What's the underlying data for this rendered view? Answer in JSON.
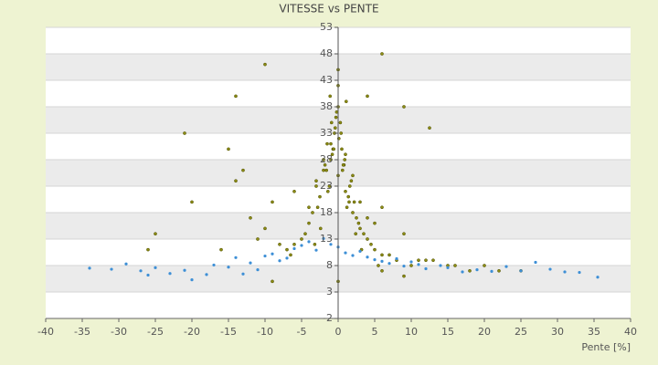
{
  "chart_data": {
    "type": "scatter",
    "title": "VITESSE vs PENTE",
    "x_label": "Pente [%]",
    "xlim": [
      -40,
      40
    ],
    "xticks": [
      -40,
      -35,
      -30,
      -25,
      -20,
      -15,
      -10,
      -5,
      0,
      5,
      10,
      15,
      20,
      25,
      30,
      35,
      40
    ],
    "ylim": [
      -2,
      53
    ],
    "yticks": [
      -2,
      3,
      8,
      13,
      18,
      23,
      28,
      33,
      38,
      43,
      48,
      53
    ],
    "grid": true,
    "series": [
      {
        "color": "#8c8c14",
        "x": [
          -1,
          -0.5,
          0,
          0.5,
          1,
          1.5,
          2,
          -2,
          -3,
          -1.5,
          0.3,
          -0.8,
          2.5,
          3,
          -2.5,
          1.2,
          -0.2,
          0.8,
          -1.2,
          3.5,
          4,
          -4,
          -3.5,
          5,
          6,
          -5,
          -6,
          2.2,
          1.8,
          -1.8,
          0.1,
          -0.4,
          0.6,
          -0.7,
          1.4,
          -1.4,
          2.8,
          -2.8,
          4.5,
          -4.5,
          7,
          8,
          -7,
          -8,
          10,
          12,
          15,
          18,
          20,
          22,
          25,
          -10,
          -12,
          -14,
          -15,
          -9,
          -11,
          -13,
          6,
          -6,
          5,
          9,
          11,
          0,
          0,
          0,
          0,
          -0.3,
          0.4,
          1,
          -1,
          2,
          -2,
          3,
          -3,
          4,
          -4,
          0.7,
          -0.6,
          1.6,
          -1.6,
          6,
          -6.5,
          5.5,
          13,
          16,
          -16,
          -20,
          -25,
          -26,
          9,
          -9,
          3.2,
          -3.2,
          0.9,
          -0.9,
          2.4,
          -2.4,
          1.1,
          -1.1,
          6,
          -10,
          -14,
          4,
          9,
          12.5,
          -21
        ],
        "values": [
          28,
          33,
          25,
          30,
          22,
          20,
          18,
          26,
          24,
          31,
          35,
          29,
          17,
          15,
          21,
          19,
          37,
          27,
          23,
          14,
          13,
          16,
          18,
          11,
          10,
          13,
          12,
          20,
          24,
          27,
          32,
          34,
          26,
          30,
          21,
          22,
          16,
          19,
          12,
          14,
          10,
          9,
          11,
          12,
          8,
          9,
          8,
          7,
          8,
          7,
          7,
          15,
          17,
          24,
          30,
          20,
          13,
          26,
          19,
          22,
          16,
          14,
          9,
          38,
          42,
          45,
          5,
          36,
          33,
          29,
          31,
          25,
          28,
          20,
          23,
          17,
          19,
          27,
          30,
          23,
          26,
          7,
          10,
          8,
          9,
          8,
          11,
          20,
          14,
          11,
          6,
          5,
          11,
          12,
          28,
          35,
          14,
          15,
          39,
          40,
          48,
          46,
          40,
          40,
          38,
          34,
          33
        ]
      },
      {
        "color": "#3d8fd6",
        "x": [
          -34,
          -31,
          -29,
          -27,
          -26,
          -25,
          -23,
          -21,
          -20,
          -18,
          -17,
          -15,
          -14,
          -13,
          -12,
          -11,
          -10,
          -9,
          -8,
          -7,
          -6,
          -5,
          -4,
          -3,
          -2,
          -1,
          0,
          1,
          2,
          3,
          4,
          5,
          6,
          7,
          8,
          9,
          10,
          11,
          12,
          14,
          15,
          17,
          19,
          21,
          23,
          25,
          27,
          29,
          31,
          33,
          35.5
        ],
        "values": [
          7.5,
          7.3,
          8.3,
          7,
          6.2,
          7.6,
          6.5,
          7.1,
          5.3,
          6.3,
          8.1,
          7.7,
          9.5,
          6.4,
          8.5,
          7.2,
          9.8,
          10.2,
          8.9,
          9.4,
          11.2,
          11.8,
          12.5,
          10.9,
          13.1,
          12,
          11.5,
          10.4,
          9.9,
          10.7,
          9.6,
          9.1,
          8.8,
          8.4,
          9.3,
          7.9,
          8.7,
          8.2,
          7.4,
          8,
          7.6,
          6.8,
          7.2,
          6.9,
          7.8,
          7,
          8.6,
          7.3,
          6.8,
          6.7,
          5.8
        ]
      }
    ]
  }
}
